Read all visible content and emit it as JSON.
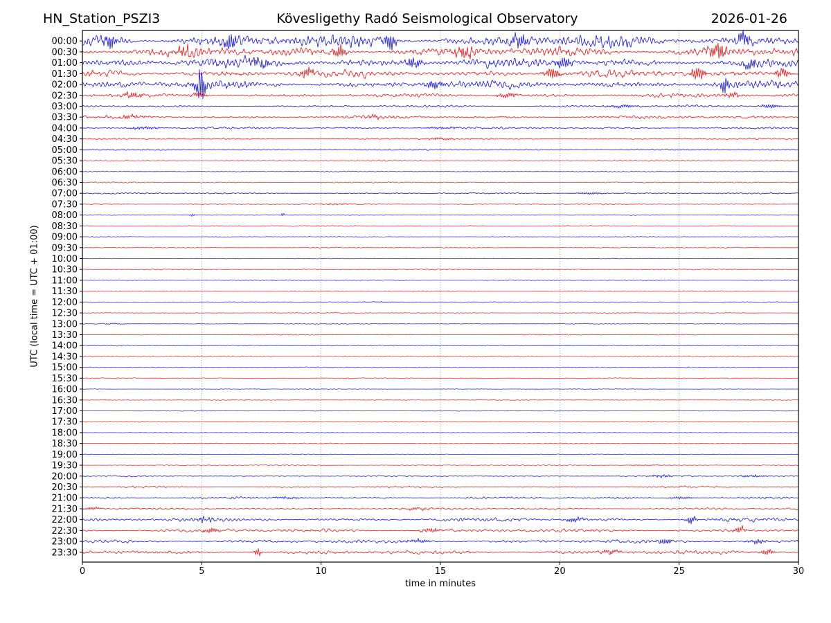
{
  "chart_data": {
    "type": "line",
    "subtype": "helicorder-seismogram",
    "station": "HN_Station_PSZI3",
    "title": "Kövesligethy Radó Seismological Observatory",
    "date": "2026-01-26",
    "xlabel": "time in minutes",
    "ylabel": "UTC (local time = UTC + 01:00)",
    "xlim": [
      0,
      30
    ],
    "x_ticks": [
      0,
      5,
      10,
      15,
      20,
      25,
      30
    ],
    "grid_minutes": [
      5,
      10,
      15,
      20,
      25
    ],
    "grid_style": "dotted",
    "colors": {
      "blue_trace": "#0000ee",
      "red_trace": "#ee0000",
      "grid": "#8a8a8a",
      "axis": "#000000",
      "background": "#ffffff"
    },
    "row_minutes_span": 30,
    "rows": [
      {
        "label": "00:00",
        "color": "blue",
        "amp": 10,
        "events": [
          {
            "m": 1.2,
            "a": 8,
            "w": 0.5
          },
          {
            "m": 6.2,
            "a": 10,
            "w": 0.4
          },
          {
            "m": 12.9,
            "a": 11,
            "w": 0.35
          },
          {
            "m": 18.3,
            "a": 8,
            "w": 0.5
          },
          {
            "m": 27.7,
            "a": 9,
            "w": 0.4
          }
        ]
      },
      {
        "label": "00:30",
        "color": "red",
        "amp": 8,
        "events": [
          {
            "m": 4.3,
            "a": 7,
            "w": 0.4
          },
          {
            "m": 10.8,
            "a": 8,
            "w": 0.4
          },
          {
            "m": 16.0,
            "a": 6,
            "w": 0.5
          },
          {
            "m": 26.6,
            "a": 9,
            "w": 0.5
          }
        ]
      },
      {
        "label": "01:00",
        "color": "blue",
        "amp": 7.5,
        "events": [
          {
            "m": 7.5,
            "a": 6,
            "w": 0.5
          },
          {
            "m": 13.9,
            "a": 6,
            "w": 0.5
          },
          {
            "m": 20.2,
            "a": 8,
            "w": 0.4
          },
          {
            "m": 28.0,
            "a": 7,
            "w": 0.4
          }
        ]
      },
      {
        "label": "01:30",
        "color": "red",
        "amp": 6,
        "events": [
          {
            "m": 9.4,
            "a": 8,
            "w": 0.4
          },
          {
            "m": 19.7,
            "a": 8,
            "w": 0.45
          },
          {
            "m": 25.8,
            "a": 10,
            "w": 0.4
          },
          {
            "m": 29.3,
            "a": 7,
            "w": 0.4
          }
        ]
      },
      {
        "label": "02:00",
        "color": "blue",
        "amp": 6,
        "events": [
          {
            "m": 4.95,
            "a": 24,
            "w": 0.3
          },
          {
            "m": 14.7,
            "a": 7,
            "w": 0.5
          },
          {
            "m": 26.9,
            "a": 14,
            "w": 0.18
          }
        ]
      },
      {
        "label": "02:30",
        "color": "red",
        "amp": 3,
        "events": [
          {
            "m": 2.1,
            "a": 3,
            "w": 0.6
          },
          {
            "m": 4.9,
            "a": 4,
            "w": 0.4
          },
          {
            "m": 17.8,
            "a": 3,
            "w": 0.6
          },
          {
            "m": 27.3,
            "a": 3,
            "w": 0.5
          }
        ]
      },
      {
        "label": "03:00",
        "color": "blue",
        "amp": 1.9,
        "events": [
          {
            "m": 22.6,
            "a": 2,
            "w": 0.9
          },
          {
            "m": 28.8,
            "a": 2.6,
            "w": 0.6
          }
        ]
      },
      {
        "label": "03:30",
        "color": "red",
        "amp": 2.4,
        "events": [
          {
            "m": 2.0,
            "a": 2.4,
            "w": 0.7
          },
          {
            "m": 12.3,
            "a": 2,
            "w": 0.7
          }
        ]
      },
      {
        "label": "04:00",
        "color": "blue",
        "amp": 1.6,
        "events": [
          {
            "m": 2.6,
            "a": 2,
            "w": 0.8
          },
          {
            "m": 15.1,
            "a": 1.4,
            "w": 0.9
          }
        ]
      },
      {
        "label": "04:30",
        "color": "red",
        "amp": 1.2,
        "events": [
          {
            "m": 15.0,
            "a": 1.4,
            "w": 0.9
          }
        ]
      },
      {
        "label": "05:00",
        "color": "blue",
        "amp": 1.0,
        "events": []
      },
      {
        "label": "05:30",
        "color": "red",
        "amp": 0.9,
        "events": []
      },
      {
        "label": "06:00",
        "color": "blue",
        "amp": 0.75,
        "events": []
      },
      {
        "label": "06:30",
        "color": "red",
        "amp": 0.95,
        "events": []
      },
      {
        "label": "07:00",
        "color": "blue",
        "amp": 1.15,
        "events": [
          {
            "m": 21.3,
            "a": 1.4,
            "w": 0.9
          }
        ]
      },
      {
        "label": "07:30",
        "color": "red",
        "amp": 0.95,
        "events": [
          {
            "m": 10.6,
            "a": 1.0,
            "w": 0.9
          }
        ]
      },
      {
        "label": "08:00",
        "color": "blue",
        "amp": 0.65,
        "events": [
          {
            "m": 4.6,
            "a": 3.4,
            "w": 0.12
          },
          {
            "m": 8.4,
            "a": 3.4,
            "w": 0.12
          }
        ]
      },
      {
        "label": "08:30",
        "color": "red",
        "amp": 0.8,
        "events": []
      },
      {
        "label": "09:00",
        "color": "blue",
        "amp": 0.65,
        "events": []
      },
      {
        "label": "09:30",
        "color": "red",
        "amp": 0.7,
        "events": []
      },
      {
        "label": "10:00",
        "color": "blue",
        "amp": 0.6,
        "events": []
      },
      {
        "label": "10:30",
        "color": "red",
        "amp": 0.75,
        "events": []
      },
      {
        "label": "11:00",
        "color": "blue",
        "amp": 0.6,
        "events": []
      },
      {
        "label": "11:30",
        "color": "red",
        "amp": 0.7,
        "events": []
      },
      {
        "label": "12:00",
        "color": "blue",
        "amp": 0.6,
        "events": [
          {
            "m": 12.6,
            "a": 0.7,
            "w": 1.5
          }
        ]
      },
      {
        "label": "12:30",
        "color": "red",
        "amp": 0.75,
        "events": []
      },
      {
        "label": "13:00",
        "color": "blue",
        "amp": 0.65,
        "events": [
          {
            "m": 1.3,
            "a": 0.8,
            "w": 0.8
          }
        ]
      },
      {
        "label": "13:30",
        "color": "red",
        "amp": 0.7,
        "events": []
      },
      {
        "label": "14:00",
        "color": "blue",
        "amp": 0.6,
        "events": []
      },
      {
        "label": "14:30",
        "color": "red",
        "amp": 0.7,
        "events": []
      },
      {
        "label": "15:00",
        "color": "blue",
        "amp": 0.6,
        "events": []
      },
      {
        "label": "15:30",
        "color": "red",
        "amp": 0.7,
        "events": []
      },
      {
        "label": "16:00",
        "color": "blue",
        "amp": 0.6,
        "events": []
      },
      {
        "label": "16:30",
        "color": "red",
        "amp": 0.75,
        "events": []
      },
      {
        "label": "17:00",
        "color": "blue",
        "amp": 0.6,
        "events": []
      },
      {
        "label": "17:30",
        "color": "red",
        "amp": 0.7,
        "events": []
      },
      {
        "label": "18:00",
        "color": "blue",
        "amp": 0.6,
        "events": []
      },
      {
        "label": "18:30",
        "color": "red",
        "amp": 0.75,
        "events": []
      },
      {
        "label": "19:00",
        "color": "blue",
        "amp": 0.6,
        "events": []
      },
      {
        "label": "19:30",
        "color": "red",
        "amp": 0.85,
        "events": [
          {
            "m": 23.6,
            "a": 0.9,
            "w": 1.2
          }
        ]
      },
      {
        "label": "20:00",
        "color": "blue",
        "amp": 1.0,
        "events": [
          {
            "m": 24.3,
            "a": 1.4,
            "w": 0.9
          },
          {
            "m": 28.1,
            "a": 1.7,
            "w": 0.7
          }
        ]
      },
      {
        "label": "20:30",
        "color": "red",
        "amp": 1.25,
        "events": []
      },
      {
        "label": "21:00",
        "color": "blue",
        "amp": 1.6,
        "events": [
          {
            "m": 8.6,
            "a": 1.5,
            "w": 0.8
          },
          {
            "m": 25.1,
            "a": 1.7,
            "w": 0.7
          }
        ]
      },
      {
        "label": "21:30",
        "color": "red",
        "amp": 1.6,
        "events": [
          {
            "m": 0.4,
            "a": 2.2,
            "w": 0.5
          },
          {
            "m": 14.1,
            "a": 1.5,
            "w": 0.8
          }
        ]
      },
      {
        "label": "22:00",
        "color": "blue",
        "amp": 3.0,
        "events": [
          {
            "m": 5.1,
            "a": 3,
            "w": 0.5
          },
          {
            "m": 20.6,
            "a": 3,
            "w": 0.5
          },
          {
            "m": 25.5,
            "a": 5,
            "w": 0.3
          }
        ]
      },
      {
        "label": "22:30",
        "color": "red",
        "amp": 3.0,
        "events": [
          {
            "m": 5.4,
            "a": 3,
            "w": 0.5
          },
          {
            "m": 14.6,
            "a": 3,
            "w": 0.6
          },
          {
            "m": 27.6,
            "a": 4,
            "w": 0.4
          }
        ]
      },
      {
        "label": "23:00",
        "color": "blue",
        "amp": 2.7,
        "events": [
          {
            "m": 14.1,
            "a": 2.5,
            "w": 0.6
          },
          {
            "m": 24.4,
            "a": 4,
            "w": 0.35
          },
          {
            "m": 28.3,
            "a": 3,
            "w": 0.5
          }
        ]
      },
      {
        "label": "23:30",
        "color": "red",
        "amp": 3.0,
        "events": [
          {
            "m": 7.35,
            "a": 6.5,
            "w": 0.18
          },
          {
            "m": 22.1,
            "a": 3,
            "w": 0.6
          },
          {
            "m": 28.7,
            "a": 4,
            "w": 0.35
          }
        ]
      }
    ]
  }
}
